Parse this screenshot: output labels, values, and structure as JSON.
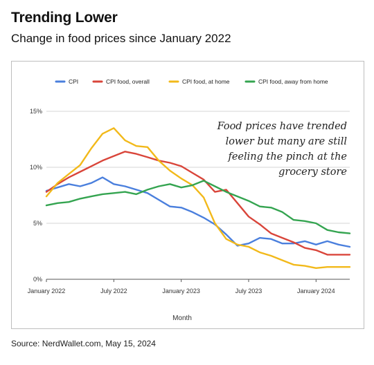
{
  "header": {
    "title": "Trending Lower",
    "subtitle": "Change in food prices since January 2022"
  },
  "footer": {
    "source": "Source: NerdWallet.com, May 15, 2024"
  },
  "chart_data": {
    "type": "line",
    "title": "",
    "xlabel": "Month",
    "ylabel": "",
    "ylim": [
      0,
      15
    ],
    "y_ticks": [
      "0%",
      "5%",
      "10%",
      "15%"
    ],
    "x_tick_labels": [
      "January 2022",
      "July 2022",
      "January 2023",
      "July 2023",
      "January 2024"
    ],
    "grid": "horizontal",
    "legend_position": "top",
    "annotation": [
      "Food prices have trended",
      "lower but many are still",
      "feeling the pinch at the",
      "grocery store"
    ],
    "x": [
      "2022-01",
      "2022-02",
      "2022-03",
      "2022-04",
      "2022-05",
      "2022-06",
      "2022-07",
      "2022-08",
      "2022-09",
      "2022-10",
      "2022-11",
      "2022-12",
      "2023-01",
      "2023-02",
      "2023-03",
      "2023-04",
      "2023-05",
      "2023-06",
      "2023-07",
      "2023-08",
      "2023-09",
      "2023-10",
      "2023-11",
      "2023-12",
      "2024-01",
      "2024-02",
      "2024-03",
      "2024-04"
    ],
    "series": [
      {
        "name": "CPI",
        "color": "#4a7fdd",
        "values": [
          7.9,
          8.2,
          8.5,
          8.3,
          8.6,
          9.1,
          8.5,
          8.3,
          8.0,
          7.7,
          7.1,
          6.5,
          6.4,
          6.0,
          5.5,
          4.9,
          4.0,
          3.0,
          3.2,
          3.7,
          3.6,
          3.2,
          3.2,
          3.4,
          3.1,
          3.4,
          3.1,
          2.9
        ]
      },
      {
        "name": "CPI food, overall",
        "color": "#d9453a",
        "values": [
          7.8,
          8.5,
          9.1,
          9.6,
          10.1,
          10.6,
          11.0,
          11.4,
          11.2,
          10.9,
          10.6,
          10.4,
          10.1,
          9.5,
          8.9,
          7.8,
          8.0,
          6.8,
          5.6,
          4.9,
          4.1,
          3.7,
          3.3,
          2.8,
          2.6,
          2.2,
          2.2,
          2.2
        ]
      },
      {
        "name": "CPI food, at home",
        "color": "#f2b91a",
        "values": [
          7.4,
          8.6,
          9.4,
          10.2,
          11.7,
          13.0,
          13.5,
          12.4,
          11.9,
          11.8,
          10.6,
          9.7,
          9.0,
          8.4,
          7.3,
          5.0,
          3.6,
          3.1,
          2.9,
          2.4,
          2.1,
          1.7,
          1.3,
          1.2,
          1.0,
          1.1,
          1.1,
          1.1
        ]
      },
      {
        "name": "CPI food, away from home",
        "color": "#34a450",
        "values": [
          6.6,
          6.8,
          6.9,
          7.2,
          7.4,
          7.6,
          7.7,
          7.8,
          7.6,
          8.0,
          8.3,
          8.5,
          8.2,
          8.4,
          8.8,
          8.3,
          7.8,
          7.4,
          7.0,
          6.5,
          6.4,
          6.0,
          5.3,
          5.2,
          5.0,
          4.4,
          4.2,
          4.1
        ]
      }
    ]
  }
}
